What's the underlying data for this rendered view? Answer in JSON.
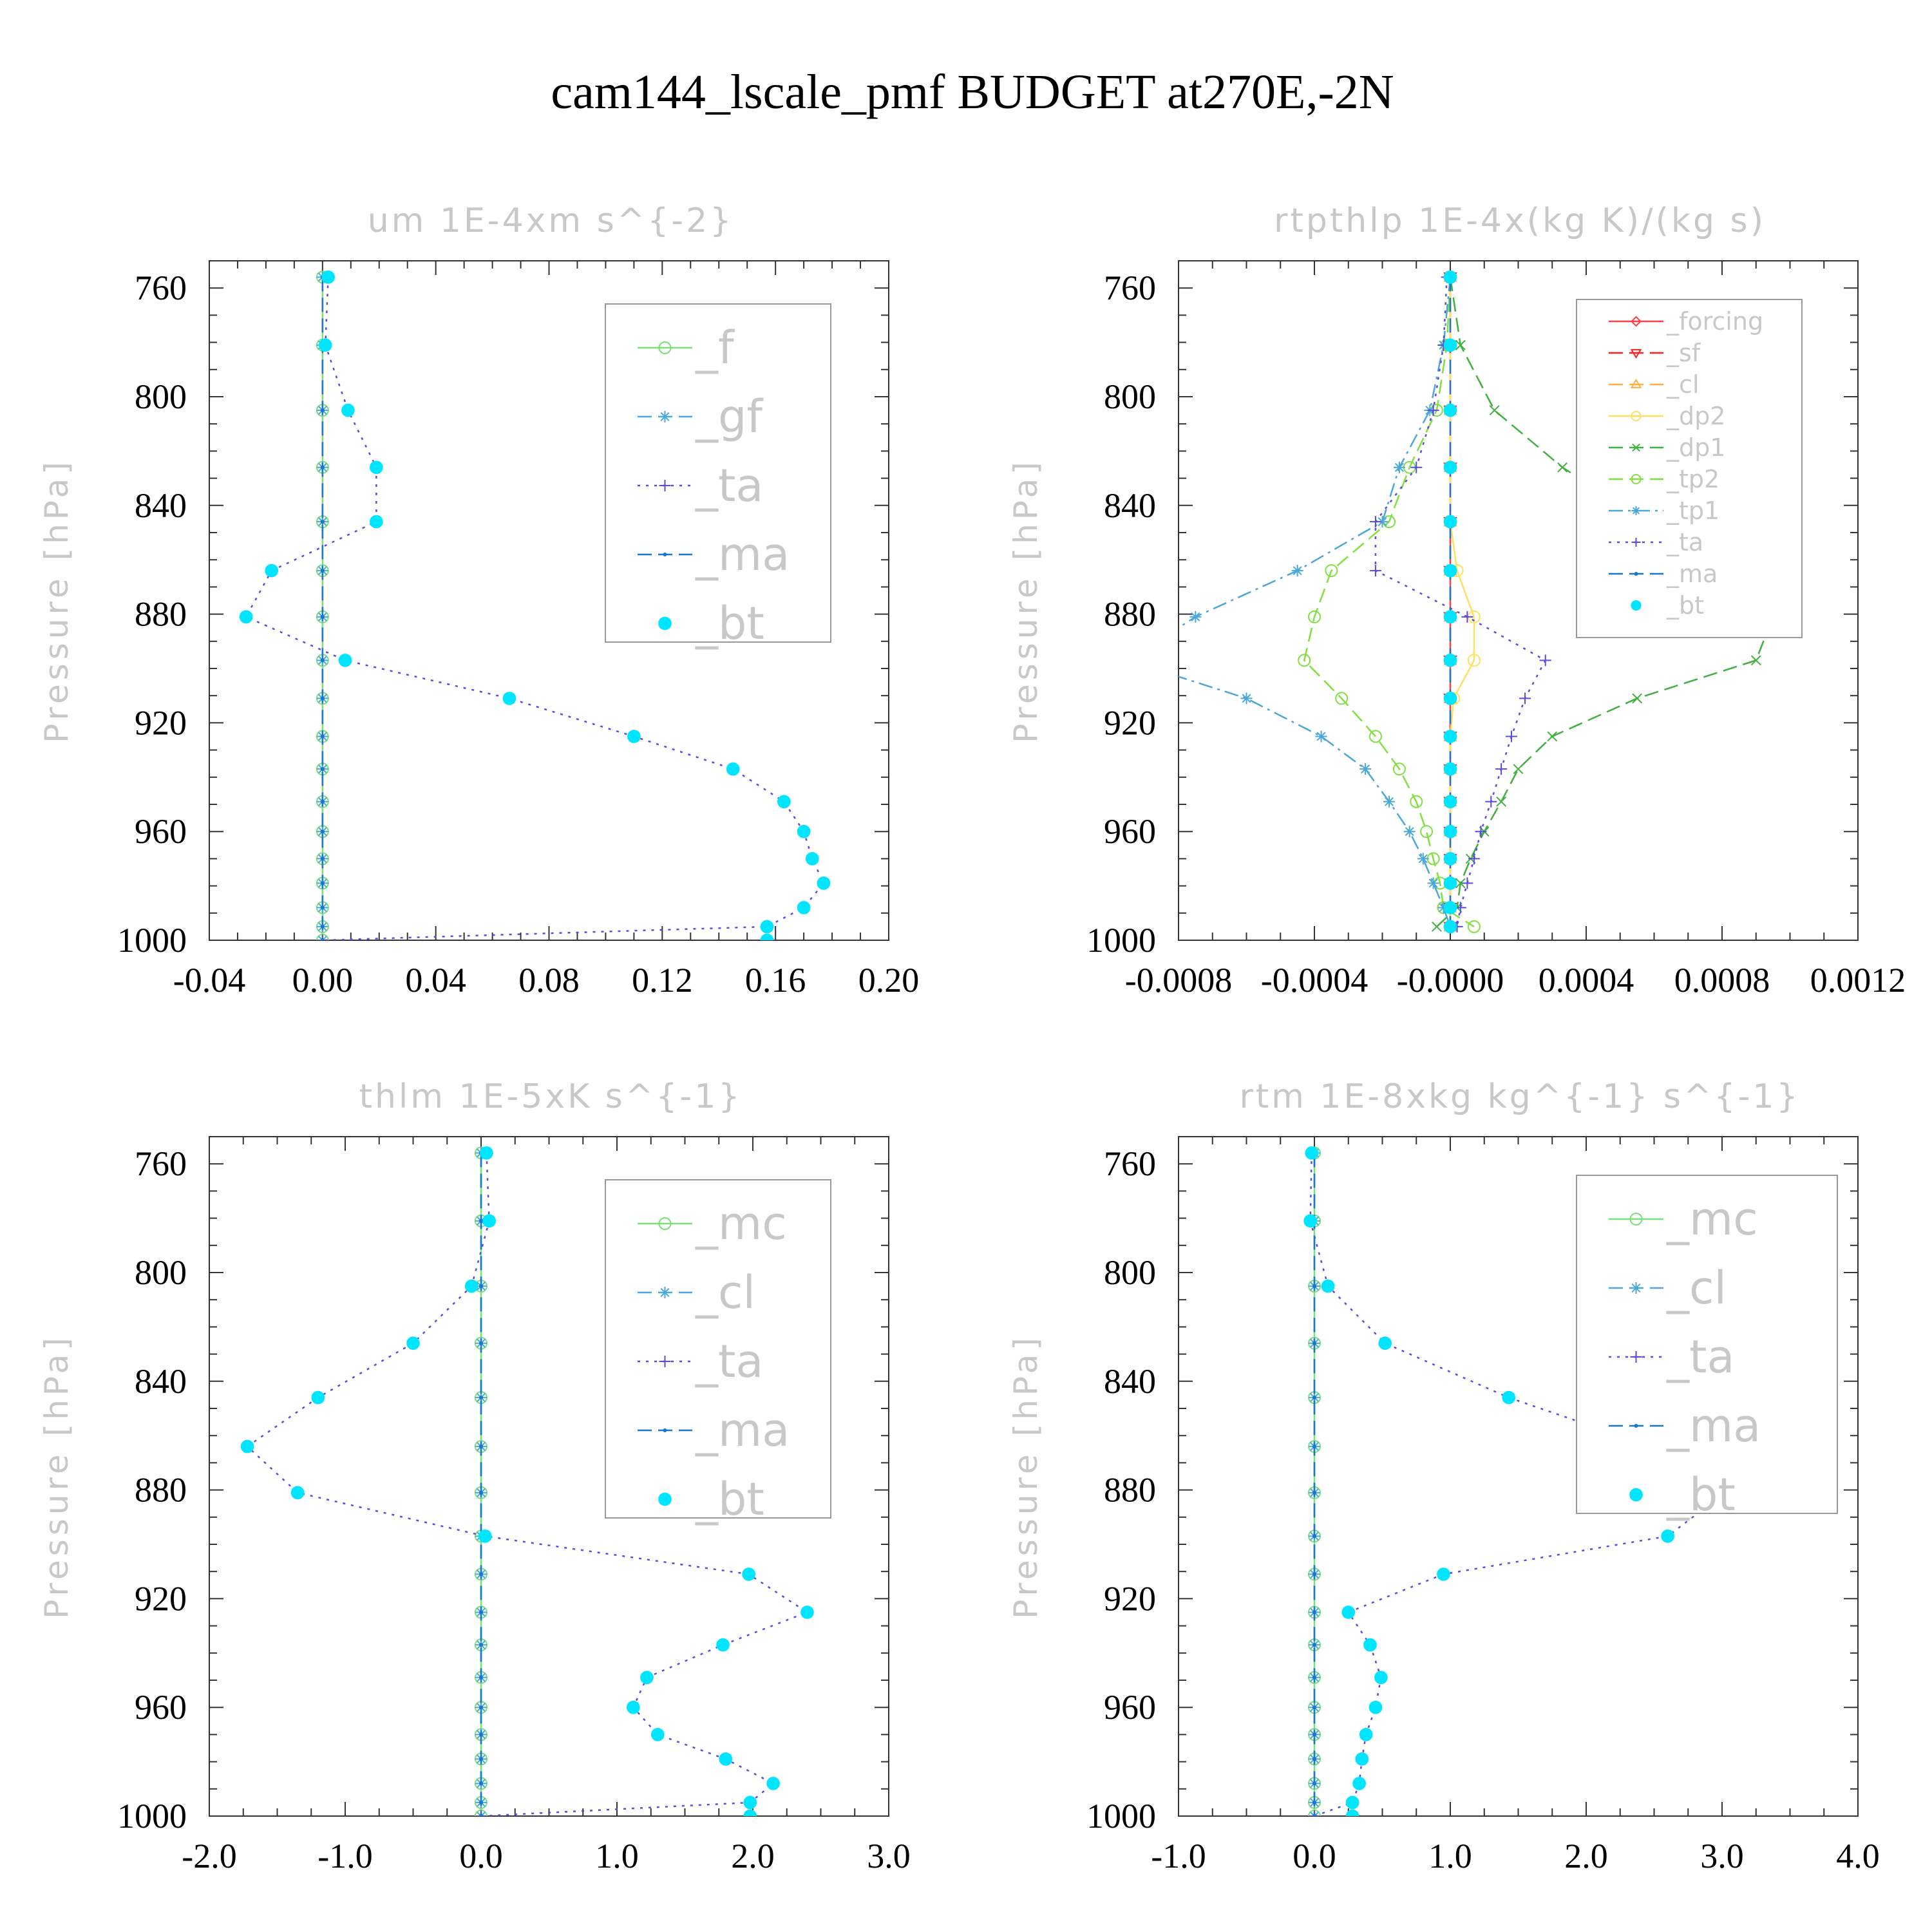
{
  "title": "cam144_lscale_pmf  BUDGET at270E,-2N",
  "chart_data": [
    {
      "type": "line",
      "title": "um  1E-4xm s^{-2}",
      "ylabel": "Pressure [hPa]",
      "xlabel": "",
      "xlim": [
        -0.04,
        0.2
      ],
      "ylim": [
        1000,
        750
      ],
      "xticks": [
        "-0.04",
        "0.00",
        "0.04",
        "0.08",
        "0.12",
        "0.16",
        "0.20"
      ],
      "xtick_values": [
        -0.04,
        0.0,
        0.04,
        0.08,
        0.12,
        0.16,
        0.2
      ],
      "yticks": [
        "760",
        "800",
        "840",
        "880",
        "920",
        "960",
        "1000"
      ],
      "ytick_values": [
        760,
        800,
        840,
        880,
        920,
        960,
        1000
      ],
      "legend_size": "large",
      "pressure": [
        756,
        781,
        805,
        826,
        846,
        864,
        881,
        897,
        911,
        925,
        937,
        949,
        960,
        970,
        979,
        988,
        995,
        1000
      ],
      "series": [
        {
          "name": "_f",
          "color": "#7be07b",
          "marker": "circle-open",
          "line": "solid",
          "values": [
            0,
            0,
            0,
            0,
            0,
            0,
            0,
            0,
            0,
            0,
            0,
            0,
            0,
            0,
            0,
            0,
            0,
            0
          ]
        },
        {
          "name": "_gf",
          "color": "#4aa8d8",
          "marker": "asterisk",
          "line": "dashed",
          "values": [
            0,
            0,
            0,
            0,
            0,
            0,
            0,
            0,
            0,
            0,
            0,
            0,
            0,
            0,
            0,
            0,
            0,
            0
          ]
        },
        {
          "name": "_ta",
          "color": "#5a4ae0",
          "marker": "plus",
          "line": "dotted",
          "values": [
            0.002,
            0.001,
            0.009,
            0.019,
            0.019,
            -0.018,
            -0.027,
            0.008,
            0.066,
            0.11,
            0.145,
            0.163,
            0.17,
            0.173,
            0.177,
            0.17,
            0.157,
            0.0
          ]
        },
        {
          "name": "_ma",
          "color": "#1a78c8",
          "marker": "dot",
          "line": "dashed",
          "values": [
            0,
            0,
            0,
            0,
            0,
            0,
            0,
            0,
            0,
            0,
            0,
            0,
            0,
            0,
            0,
            0,
            0,
            0
          ]
        },
        {
          "name": "_bt",
          "color": "#00e5ff",
          "marker": "filled-circle",
          "line": "none",
          "values": [
            0.002,
            0.001,
            0.009,
            0.019,
            0.019,
            -0.018,
            -0.027,
            0.008,
            0.066,
            0.11,
            0.145,
            0.163,
            0.17,
            0.173,
            0.177,
            0.17,
            0.157,
            0.157
          ]
        }
      ]
    },
    {
      "type": "line",
      "title": "rtpthlp  1E-4x(kg K)/(kg s)",
      "ylabel": "Pressure [hPa]",
      "xlabel": "",
      "xlim": [
        -0.0008,
        0.0012
      ],
      "ylim": [
        1000,
        750
      ],
      "xticks": [
        "-0.0008",
        "-0.0004",
        "-0.0000",
        "0.0004",
        "0.0008",
        "0.0012"
      ],
      "xtick_values": [
        -0.0008,
        -0.0004,
        0.0,
        0.0004,
        0.0008,
        0.0012
      ],
      "yticks": [
        "760",
        "800",
        "840",
        "880",
        "920",
        "960",
        "1000"
      ],
      "ytick_values": [
        760,
        800,
        840,
        880,
        920,
        960,
        1000
      ],
      "legend_size": "small",
      "pressure": [
        756,
        781,
        805,
        826,
        846,
        864,
        881,
        897,
        911,
        925,
        937,
        949,
        960,
        970,
        979,
        988,
        995
      ],
      "series": [
        {
          "name": "_forcing",
          "color": "#ff4040",
          "marker": "diamond-open",
          "line": "solid",
          "values": [
            0,
            0,
            0,
            0,
            0,
            0,
            0,
            0,
            0,
            0,
            0,
            0,
            0,
            0,
            0,
            0,
            0
          ]
        },
        {
          "name": "_sf",
          "color": "#ff2020",
          "marker": "tri-down",
          "line": "dashed",
          "values": [
            0,
            0,
            0,
            0,
            0,
            0,
            0,
            0,
            0,
            0,
            0,
            0,
            0,
            0,
            0,
            0,
            0
          ]
        },
        {
          "name": "_cl",
          "color": "#ffb040",
          "marker": "tri-up",
          "line": "dashed",
          "values": [
            0,
            0,
            0,
            0,
            0,
            0,
            0,
            0,
            0,
            0,
            0,
            0,
            0,
            0,
            0,
            0,
            0
          ]
        },
        {
          "name": "_dp2",
          "color": "#ffe060",
          "marker": "circle-open",
          "line": "solid",
          "values": [
            0,
            0,
            0,
            0,
            0,
            2e-05,
            7e-05,
            7e-05,
            1e-05,
            0,
            0,
            0,
            0,
            0,
            0,
            0,
            0
          ]
        },
        {
          "name": "_dp1",
          "color": "#40b040",
          "marker": "x",
          "line": "dashed",
          "values": [
            0,
            3e-05,
            0.00013,
            0.00033,
            0.00058,
            0.00078,
            0.00095,
            0.0009,
            0.00055,
            0.0003,
            0.0002,
            0.00015,
            0.0001,
            6e-05,
            3e-05,
            2e-05,
            -4e-05
          ]
        },
        {
          "name": "_tp2",
          "color": "#80e040",
          "marker": "circle-open",
          "line": "dashed",
          "values": [
            0,
            -1e-05,
            -4e-05,
            -0.00012,
            -0.00018,
            -0.00035,
            -0.0004,
            -0.00043,
            -0.00032,
            -0.00022,
            -0.00015,
            -0.0001,
            -7e-05,
            -5e-05,
            -3e-05,
            -2e-05,
            7e-05
          ]
        },
        {
          "name": "_tp1",
          "color": "#4aa8d8",
          "marker": "asterisk",
          "line": "dashdot",
          "values": [
            0,
            -2e-05,
            -6e-05,
            -0.00015,
            -0.0002,
            -0.00045,
            -0.00075,
            -0.00095,
            -0.0006,
            -0.00038,
            -0.00025,
            -0.00018,
            -0.00012,
            -8e-05,
            -5e-05,
            -2e-05,
            0
          ]
        },
        {
          "name": "_ta",
          "color": "#5a4ae0",
          "marker": "plus",
          "line": "dotted",
          "values": [
            -1e-05,
            -2e-05,
            -5e-05,
            -0.0001,
            -0.00022,
            -0.00022,
            5e-05,
            0.00028,
            0.00022,
            0.00018,
            0.00015,
            0.00012,
            9e-05,
            7e-05,
            5e-05,
            3e-05,
            2e-05
          ]
        },
        {
          "name": "_ma",
          "color": "#1a78c8",
          "marker": "dot",
          "line": "dashed",
          "values": [
            0,
            0,
            0,
            0,
            0,
            0,
            0,
            0,
            0,
            0,
            0,
            0,
            0,
            0,
            0,
            0,
            0
          ]
        },
        {
          "name": "_bt",
          "color": "#00e5ff",
          "marker": "filled-circle",
          "line": "none",
          "values": [
            0,
            0,
            0,
            0,
            0,
            0,
            0,
            0,
            0,
            0,
            0,
            0,
            0,
            0,
            0,
            0,
            0
          ]
        }
      ]
    },
    {
      "type": "line",
      "title": "thlm  1E-5xK s^{-1}",
      "ylabel": "Pressure [hPa]",
      "xlabel": "",
      "xlim": [
        -2.0,
        3.0
      ],
      "ylim": [
        1000,
        750
      ],
      "xticks": [
        "-2.0",
        "-1.0",
        "0.0",
        "1.0",
        "2.0",
        "3.0"
      ],
      "xtick_values": [
        -2.0,
        -1.0,
        0.0,
        1.0,
        2.0,
        3.0
      ],
      "yticks": [
        "760",
        "800",
        "840",
        "880",
        "920",
        "960",
        "1000"
      ],
      "ytick_values": [
        760,
        800,
        840,
        880,
        920,
        960,
        1000
      ],
      "legend_size": "large",
      "pressure": [
        756,
        781,
        805,
        826,
        846,
        864,
        881,
        897,
        911,
        925,
        937,
        949,
        960,
        970,
        979,
        988,
        995,
        1000
      ],
      "series": [
        {
          "name": "_mc",
          "color": "#7be07b",
          "marker": "circle-open",
          "line": "solid",
          "values": [
            0,
            0,
            0,
            0,
            0,
            0,
            0,
            0,
            0,
            0,
            0,
            0,
            0,
            0,
            0,
            0,
            0,
            0
          ]
        },
        {
          "name": "_cl",
          "color": "#4aa8d8",
          "marker": "asterisk",
          "line": "dashed",
          "values": [
            0,
            0,
            0,
            0,
            0,
            0,
            0,
            0,
            0,
            0,
            0,
            0,
            0,
            0,
            0,
            0,
            0,
            0
          ]
        },
        {
          "name": "_ta",
          "color": "#5a4ae0",
          "marker": "plus",
          "line": "dotted",
          "values": [
            0.04,
            0.06,
            -0.07,
            -0.5,
            -1.2,
            -1.72,
            -1.35,
            0.03,
            1.97,
            2.4,
            1.78,
            1.22,
            1.12,
            1.3,
            1.8,
            2.15,
            1.98,
            0.0
          ]
        },
        {
          "name": "_ma",
          "color": "#1a78c8",
          "marker": "dot",
          "line": "dashed",
          "values": [
            0,
            0,
            0,
            0,
            0,
            0,
            0,
            0,
            0,
            0,
            0,
            0,
            0,
            0,
            0,
            0,
            0,
            0
          ]
        },
        {
          "name": "_bt",
          "color": "#00e5ff",
          "marker": "filled-circle",
          "line": "none",
          "values": [
            0.04,
            0.06,
            -0.07,
            -0.5,
            -1.2,
            -1.72,
            -1.35,
            0.03,
            1.97,
            2.4,
            1.78,
            1.22,
            1.12,
            1.3,
            1.8,
            2.15,
            1.98,
            1.98
          ]
        }
      ]
    },
    {
      "type": "line",
      "title": "rtm  1E-8xkg kg^{-1} s^{-1}",
      "ylabel": "Pressure [hPa]",
      "xlabel": "",
      "xlim": [
        -1.0,
        4.0
      ],
      "ylim": [
        1000,
        750
      ],
      "xticks": [
        "-1.0",
        "0.0",
        "1.0",
        "2.0",
        "3.0",
        "4.0"
      ],
      "xtick_values": [
        -1.0,
        0.0,
        1.0,
        2.0,
        3.0,
        4.0
      ],
      "yticks": [
        "760",
        "800",
        "840",
        "880",
        "920",
        "960",
        "1000"
      ],
      "ytick_values": [
        760,
        800,
        840,
        880,
        920,
        960,
        1000
      ],
      "legend_size": "large",
      "pressure": [
        756,
        781,
        805,
        826,
        846,
        864,
        881,
        897,
        911,
        925,
        937,
        949,
        960,
        970,
        979,
        988,
        995,
        1000
      ],
      "series": [
        {
          "name": "_mc",
          "color": "#7be07b",
          "marker": "circle-open",
          "line": "solid",
          "values": [
            0,
            0,
            0,
            0,
            0,
            0,
            0,
            0,
            0,
            0,
            0,
            0,
            0,
            0,
            0,
            0,
            0,
            0
          ]
        },
        {
          "name": "_cl",
          "color": "#4aa8d8",
          "marker": "asterisk",
          "line": "dashed",
          "values": [
            0,
            0,
            0,
            0,
            0,
            0,
            0,
            0,
            0,
            0,
            0,
            0,
            0,
            0,
            0,
            0,
            0,
            0
          ]
        },
        {
          "name": "_ta",
          "color": "#5a4ae0",
          "marker": "plus",
          "line": "dotted",
          "values": [
            -0.02,
            -0.03,
            0.1,
            0.52,
            1.43,
            2.48,
            3.02,
            2.6,
            0.95,
            0.25,
            0.41,
            0.49,
            0.45,
            0.38,
            0.35,
            0.33,
            0.28,
            0.0
          ]
        },
        {
          "name": "_ma",
          "color": "#1a78c8",
          "marker": "dot",
          "line": "dashed",
          "values": [
            0,
            0,
            0,
            0,
            0,
            0,
            0,
            0,
            0,
            0,
            0,
            0,
            0,
            0,
            0,
            0,
            0,
            0
          ]
        },
        {
          "name": "_bt",
          "color": "#00e5ff",
          "marker": "filled-circle",
          "line": "none",
          "values": [
            -0.02,
            -0.03,
            0.1,
            0.52,
            1.43,
            2.48,
            3.02,
            2.6,
            0.95,
            0.25,
            0.41,
            0.49,
            0.45,
            0.38,
            0.35,
            0.33,
            0.28,
            0.28
          ]
        }
      ]
    }
  ]
}
